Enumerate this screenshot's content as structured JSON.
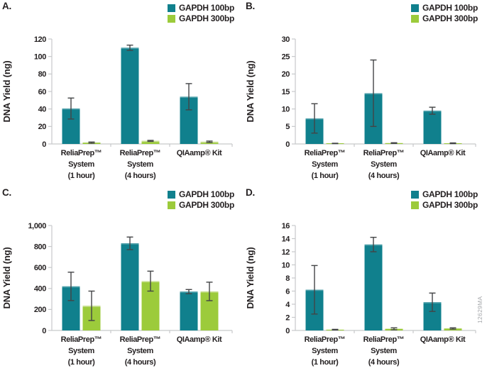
{
  "watermark": "12629MA",
  "colors": {
    "teal": "#10808D",
    "teal_highlight": "#4FA0AA",
    "green": "#9CCB3B",
    "green_highlight": "#C9DF93",
    "axis": "#C7C9CB",
    "error_bar": "#434446",
    "text": "#231F20",
    "watermark": "#A7A9AC"
  },
  "chart_data": [
    {
      "type": "bar",
      "title": "A.",
      "ylabel": "DNA Yield (ng)",
      "ylim": [
        0,
        120
      ],
      "yticks": [
        0,
        20,
        40,
        60,
        80,
        100,
        120
      ],
      "ytick_labels": [
        "0",
        "20",
        "40",
        "60",
        "80",
        "100",
        "120"
      ],
      "grid": false,
      "legend_position": "top-right",
      "categories": [
        "ReliaPrep™ System (1 hour)",
        "ReliaPrep™ System (4 hours)",
        "QIAamp® Kit"
      ],
      "category_lines": [
        [
          "ReliaPrep™",
          "System",
          "(1 hour)"
        ],
        [
          "ReliaPrep™",
          "System",
          "(4 hours)"
        ],
        [
          "QIAamp® Kit"
        ]
      ],
      "series": [
        {
          "name": "GAPDH 100bp",
          "color": "#10808D",
          "highlight": "#4FA0AA",
          "values": [
            40.5,
            110,
            54
          ],
          "errors": [
            12,
            3,
            15
          ]
        },
        {
          "name": "GAPDH 300bp",
          "color": "#9CCB3B",
          "highlight": "#C9DF93",
          "values": [
            1.5,
            3.5,
            2.5
          ],
          "errors": [
            0.7,
            0.6,
            0.8
          ]
        }
      ]
    },
    {
      "type": "bar",
      "title": "B.",
      "ylabel": "DNA Yield (ng)",
      "ylim": [
        0,
        30
      ],
      "yticks": [
        0,
        5,
        10,
        15,
        20,
        25,
        30
      ],
      "ytick_labels": [
        "0",
        "5",
        "10",
        "15",
        "20",
        "25",
        "30"
      ],
      "grid": false,
      "legend_position": "top-right",
      "categories": [
        "ReliaPrep™ System (1 hour)",
        "ReliaPrep™ System (4 hours)",
        "QIAamp® Kit"
      ],
      "category_lines": [
        [
          "ReliaPrep™",
          "System",
          "(1 hour)"
        ],
        [
          "ReliaPrep™",
          "System",
          "(4 hours)"
        ],
        [
          "QIAamp® Kit"
        ]
      ],
      "series": [
        {
          "name": "GAPDH 100bp",
          "color": "#10808D",
          "highlight": "#4FA0AA",
          "values": [
            7.3,
            14.5,
            9.5
          ],
          "errors": [
            4.2,
            9.5,
            1
          ]
        },
        {
          "name": "GAPDH 300bp",
          "color": "#9CCB3B",
          "highlight": "#C9DF93",
          "values": [
            0.15,
            0.25,
            0.2
          ],
          "errors": [
            0.05,
            0.1,
            0.1
          ]
        }
      ]
    },
    {
      "type": "bar",
      "title": "C.",
      "ylabel": "DNA Yield (ng)",
      "ylim": [
        0,
        1000
      ],
      "yticks": [
        0,
        200,
        400,
        600,
        800,
        1000
      ],
      "ytick_labels": [
        "0",
        "200",
        "400",
        "600",
        "800",
        "1,000"
      ],
      "grid": false,
      "legend_position": "top-right",
      "categories": [
        "ReliaPrep™ System (1 hour)",
        "ReliaPrep™ System (4 hours)",
        "QIAamp® Kit"
      ],
      "category_lines": [
        [
          "ReliaPrep™",
          "System",
          "(1 hour)"
        ],
        [
          "ReliaPrep™",
          "System",
          "(4 hours)"
        ],
        [
          "QIAamp® Kit"
        ]
      ],
      "series": [
        {
          "name": "GAPDH 100bp",
          "color": "#10808D",
          "highlight": "#4FA0AA",
          "values": [
            420,
            830,
            370
          ],
          "errors": [
            135,
            60,
            20
          ]
        },
        {
          "name": "GAPDH 300bp",
          "color": "#9CCB3B",
          "highlight": "#C9DF93",
          "values": [
            235,
            470,
            372
          ],
          "errors": [
            140,
            95,
            88
          ]
        }
      ]
    },
    {
      "type": "bar",
      "title": "D.",
      "ylabel": "DNA Yield (ng)",
      "ylim": [
        0,
        16
      ],
      "yticks": [
        0,
        2,
        4,
        6,
        8,
        10,
        12,
        14,
        16
      ],
      "ytick_labels": [
        "0",
        "2",
        "4",
        "6",
        "8",
        "10",
        "12",
        "14",
        "16"
      ],
      "grid": false,
      "legend_position": "top-right",
      "categories": [
        "ReliaPrep™ System (1 hour)",
        "ReliaPrep™ System (4 hours)",
        "QIAamp® Kit"
      ],
      "category_lines": [
        [
          "ReliaPrep™",
          "System",
          "(1 hour)"
        ],
        [
          "ReliaPrep™",
          "System",
          "(4 hours)"
        ],
        [
          "QIAamp® Kit"
        ]
      ],
      "series": [
        {
          "name": "GAPDH 100bp",
          "color": "#10808D",
          "highlight": "#4FA0AA",
          "values": [
            6.2,
            13.1,
            4.3
          ],
          "errors": [
            3.7,
            1.1,
            1.4
          ]
        },
        {
          "name": "GAPDH 300bp",
          "color": "#9CCB3B",
          "highlight": "#C9DF93",
          "values": [
            0.12,
            0.25,
            0.3
          ],
          "errors": [
            0.05,
            0.15,
            0.1
          ]
        }
      ]
    }
  ]
}
